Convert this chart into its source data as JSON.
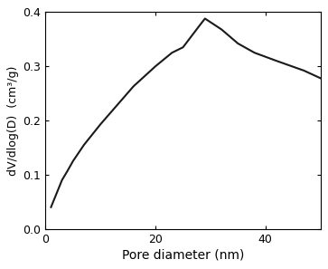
{
  "x": [
    1,
    2,
    3,
    4,
    5,
    7,
    10,
    13,
    16,
    20,
    23,
    25,
    28,
    29,
    32,
    35,
    38,
    42,
    47,
    50
  ],
  "y": [
    0.04,
    0.065,
    0.09,
    0.107,
    0.125,
    0.155,
    0.193,
    0.228,
    0.263,
    0.3,
    0.325,
    0.335,
    0.375,
    0.388,
    0.368,
    0.342,
    0.325,
    0.31,
    0.292,
    0.278
  ],
  "xlabel": "Pore diameter (nm)",
  "ylabel": "dV/dlog(D)  (cm³/g)",
  "xlim": [
    0,
    50
  ],
  "ylim": [
    0.0,
    0.4
  ],
  "xticks": [
    0,
    20,
    40
  ],
  "yticks": [
    0.0,
    0.1,
    0.2,
    0.3,
    0.4
  ],
  "line_color": "#1a1a1a",
  "line_width": 1.5,
  "background_color": "#ffffff",
  "xlabel_fontsize": 10,
  "ylabel_fontsize": 9,
  "tick_fontsize": 9
}
